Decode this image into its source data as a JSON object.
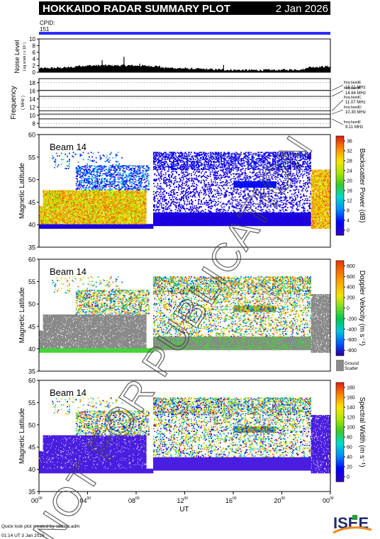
{
  "header": {
    "title": "HOKKAIDO RADAR SUMMARY PLOT",
    "date": "2 Jan 2026"
  },
  "cpid": {
    "label": "CPID:",
    "value": "151",
    "bar_color": "#2b2bff"
  },
  "noise_panel": {
    "ylabel": "Noise Level",
    "ylabel_sub": "Log scale ( x 10³ )",
    "yticks": [
      "0",
      "2",
      "4",
      "6",
      "8",
      "10"
    ]
  },
  "freq_panel": {
    "ylabel": "Frequency",
    "ylabel_sub": "( MHz )",
    "yticks": [
      "8",
      "10",
      "12",
      "14",
      "16",
      "18"
    ],
    "bands": [
      {
        "name": "freq bandE",
        "value": "16.11 MHz",
        "freq": 16.11
      },
      {
        "name": "freq bandF",
        "value": "14.64 MHz",
        "freq": 14.64
      },
      {
        "name": "freq bandC",
        "value": "11.07 MHz",
        "freq": 11.07
      },
      {
        "name": "freq bandD",
        "value": "10.30 MHz",
        "freq": 10.3
      },
      {
        "name": "freq bandF",
        "value": "9.11 MHz",
        "freq": 9.11
      }
    ]
  },
  "panels": [
    {
      "beam": "Beam 14",
      "ylabel": "Magnetic Latitude",
      "yticks": [
        "35",
        "40",
        "45",
        "50",
        "55",
        "60"
      ],
      "cbar_label": "Backscatter Power (dB)",
      "cbar_ticks": [
        "0",
        "4",
        "8",
        "12",
        "16",
        "20",
        "24",
        "28",
        "32",
        "36"
      ]
    },
    {
      "beam": "Beam 14",
      "ylabel": "Magnetic Latitude",
      "yticks": [
        "35",
        "40",
        "45",
        "50",
        "55",
        "60"
      ],
      "cbar_label": "Doppler Velocity (m s⁻¹)",
      "cbar_ticks": [
        "800",
        "600",
        "400",
        "200",
        "0",
        "-200",
        "-400",
        "-600",
        "-800"
      ],
      "ground_label": "Ground",
      "ground_label2": "Scatter"
    },
    {
      "beam": "Beam 14",
      "ylabel": "Magnetic Latitude",
      "yticks": [
        "35",
        "40",
        "45",
        "50",
        "55",
        "60"
      ],
      "cbar_label": "Spectral Width (m s⁻¹)",
      "cbar_ticks": [
        "0",
        "20",
        "40",
        "60",
        "80",
        "100",
        "120",
        "140",
        "160",
        "180"
      ]
    }
  ],
  "x_axis": {
    "label": "UT",
    "ticks": [
      {
        "h": "00",
        "m": "00"
      },
      {
        "h": "04",
        "m": "00"
      },
      {
        "h": "08",
        "m": "00"
      },
      {
        "h": "12",
        "m": "00"
      },
      {
        "h": "16",
        "m": "00"
      },
      {
        "h": "20",
        "m": "00"
      },
      {
        "h": "00",
        "m": "00"
      }
    ]
  },
  "footer": {
    "credit": "Quick look plot created by sddata.adm",
    "timestamp": "01:14 UT  3 Jan 2026",
    "logo": "ISEE"
  },
  "watermark": "NOT FOR PUBLICATION",
  "chart_data": {
    "type": "heatmap",
    "x_range_ut_hours": [
      0,
      24
    ],
    "y_range_mlat": [
      35,
      60
    ],
    "freq_range_mhz": [
      7,
      19
    ],
    "noise_range": [
      0,
      10
    ],
    "power_range_db": [
      0,
      36
    ],
    "velocity_range": [
      -800,
      800
    ],
    "width_range": [
      0,
      180
    ]
  }
}
